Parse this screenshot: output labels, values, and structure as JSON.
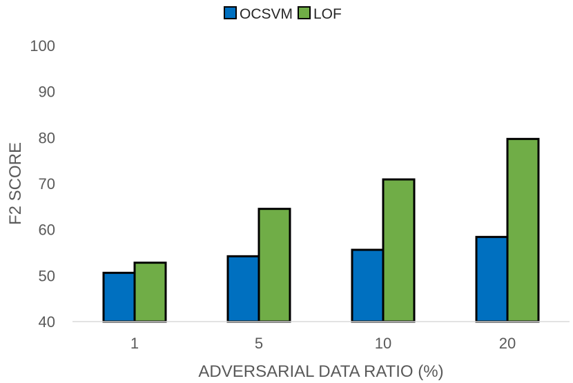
{
  "chart_data": {
    "type": "bar",
    "title": "",
    "categories": [
      "1",
      "5",
      "10",
      "20"
    ],
    "series": [
      {
        "name": "OCSVM",
        "values": [
          50.6,
          54.2,
          55.6,
          58.4
        ],
        "color": "#0070C0"
      },
      {
        "name": "LOF",
        "values": [
          52.8,
          64.5,
          70.9,
          79.7
        ],
        "color": "#70AD47"
      }
    ],
    "xlabel": "ADVERSARIAL DATA RATIO (%)",
    "ylabel": "F2 SCORE",
    "ylim": [
      40,
      100
    ],
    "yticks": [
      40,
      50,
      60,
      70,
      80,
      90,
      100
    ],
    "grid": false,
    "legend": "top-center",
    "bar_outline_color": "#000000"
  }
}
